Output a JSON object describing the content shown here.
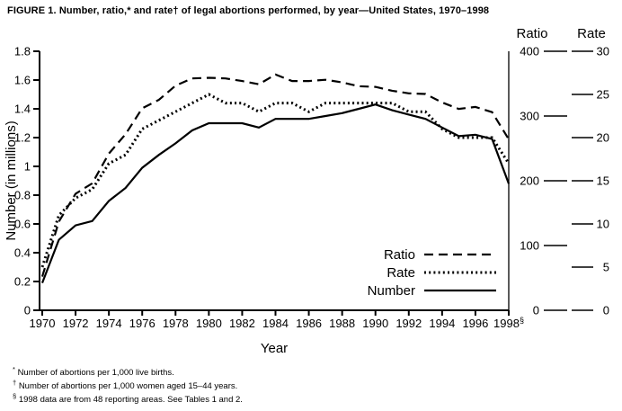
{
  "title": "FIGURE 1. Number, ratio,* and rate† of legal abortions performed, by year—United States, 1970–1998",
  "footnotes": [
    {
      "sym": "*",
      "text": "Number of abortions per 1,000 live births."
    },
    {
      "sym": "†",
      "text": "Number of abortions per 1,000 women aged 15–44 years."
    },
    {
      "sym": "§",
      "text": "1998 data are from 48 reporting areas. See Tables 1 and 2."
    }
  ],
  "chart_data": {
    "type": "line",
    "title": "FIGURE 1. Number, ratio, and rate of legal abortions performed, by year—United States, 1970–1998",
    "x": [
      1970,
      1971,
      1972,
      1973,
      1974,
      1975,
      1976,
      1977,
      1978,
      1979,
      1980,
      1981,
      1982,
      1983,
      1984,
      1985,
      1986,
      1987,
      1988,
      1989,
      1990,
      1991,
      1992,
      1993,
      1994,
      1995,
      1996,
      1997,
      1998
    ],
    "series": [
      {
        "name": "Ratio",
        "style": "dashed",
        "axis": "ratio",
        "values": [
          52,
          137,
          180,
          196,
          242,
          272,
          312,
          325,
          347,
          358,
          359,
          358,
          354,
          349,
          364,
          354,
          354,
          356,
          352,
          346,
          345,
          339,
          335,
          334,
          321,
          311,
          314,
          306,
          264
        ]
      },
      {
        "name": "Rate",
        "style": "dotted",
        "axis": "rate",
        "values": [
          5,
          11,
          13,
          14,
          17,
          18,
          21,
          22,
          23,
          24,
          25,
          24,
          24,
          23,
          24,
          24,
          23,
          24,
          24,
          24,
          24,
          24,
          23,
          23,
          21,
          20,
          20,
          20,
          17
        ]
      },
      {
        "name": "Number",
        "style": "solid",
        "axis": "number",
        "values": [
          0.19,
          0.49,
          0.59,
          0.62,
          0.76,
          0.85,
          0.99,
          1.08,
          1.16,
          1.25,
          1.3,
          1.3,
          1.3,
          1.27,
          1.33,
          1.33,
          1.33,
          1.35,
          1.37,
          1.4,
          1.43,
          1.39,
          1.36,
          1.33,
          1.27,
          1.21,
          1.22,
          1.19,
          0.88
        ]
      }
    ],
    "y_left": {
      "label": "Number (in millions)",
      "min": 0,
      "max": 1.8,
      "ticks": [
        0,
        0.2,
        0.4,
        0.6,
        0.8,
        1,
        1.2,
        1.4,
        1.6,
        1.8
      ]
    },
    "y_right": [
      {
        "name": "Ratio",
        "min": 0,
        "max": 400,
        "ticks": [
          400,
          300,
          200,
          100,
          0
        ]
      },
      {
        "name": "Rate",
        "min": 0,
        "max": 30,
        "ticks": [
          30,
          25,
          20,
          15,
          10,
          5,
          0
        ]
      }
    ],
    "x_axis": {
      "label": "Year",
      "tick_years": [
        1970,
        1972,
        1974,
        1976,
        1978,
        1980,
        1982,
        1984,
        1986,
        1988,
        1990,
        1992,
        1994,
        1996,
        1998
      ],
      "last_tick_suffix": "§"
    },
    "legend": [
      "Ratio",
      "Rate",
      "Number"
    ],
    "legend_position": "inside-lower-right",
    "grid": false,
    "line_color": "#000000"
  }
}
